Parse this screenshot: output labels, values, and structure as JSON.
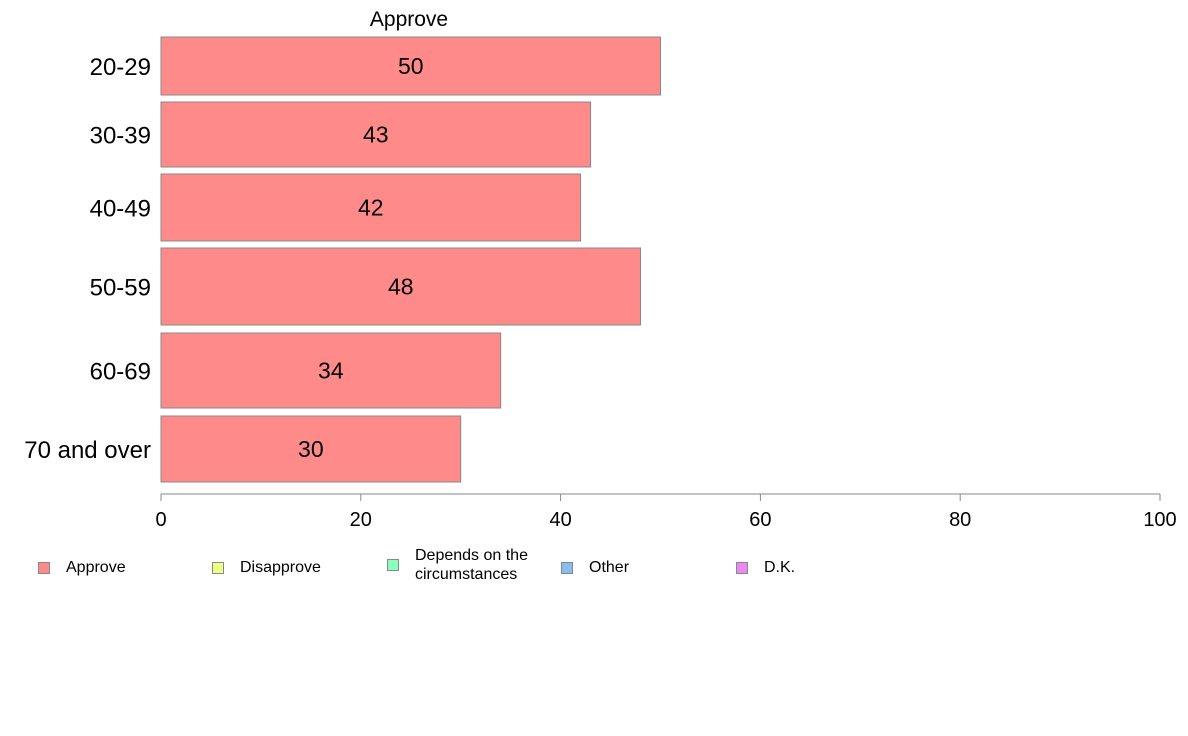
{
  "chart_data": {
    "type": "bar",
    "orientation": "horizontal",
    "title": "Approve",
    "categories": [
      "20-29",
      "30-39",
      "40-49",
      "50-59",
      "60-69",
      "70 and over"
    ],
    "series": [
      {
        "name": "Approve",
        "values": [
          50,
          43,
          42,
          48,
          34,
          30
        ]
      }
    ],
    "data_labels": [
      "50",
      "43",
      "42",
      "48",
      "34",
      "30"
    ],
    "xlim": [
      0,
      100
    ],
    "x_ticks": [
      0,
      20,
      40,
      60,
      80,
      100
    ],
    "x_tick_labels": [
      "0",
      "20",
      "40",
      "60",
      "80",
      "100"
    ],
    "grid": false,
    "legend_position": "bottom",
    "legend": [
      {
        "label": "Approve",
        "color": "#ff8a8a"
      },
      {
        "label": "Disapprove",
        "color": "#eeff88"
      },
      {
        "label": "Depends on the circumstances",
        "color": "#88ffbb"
      },
      {
        "label": "Other",
        "color": "#88bbee"
      },
      {
        "label": "D.K.",
        "color": "#ee88ee"
      }
    ],
    "bar_color": "#ff8a8a",
    "bar_border_color": "#888888"
  }
}
